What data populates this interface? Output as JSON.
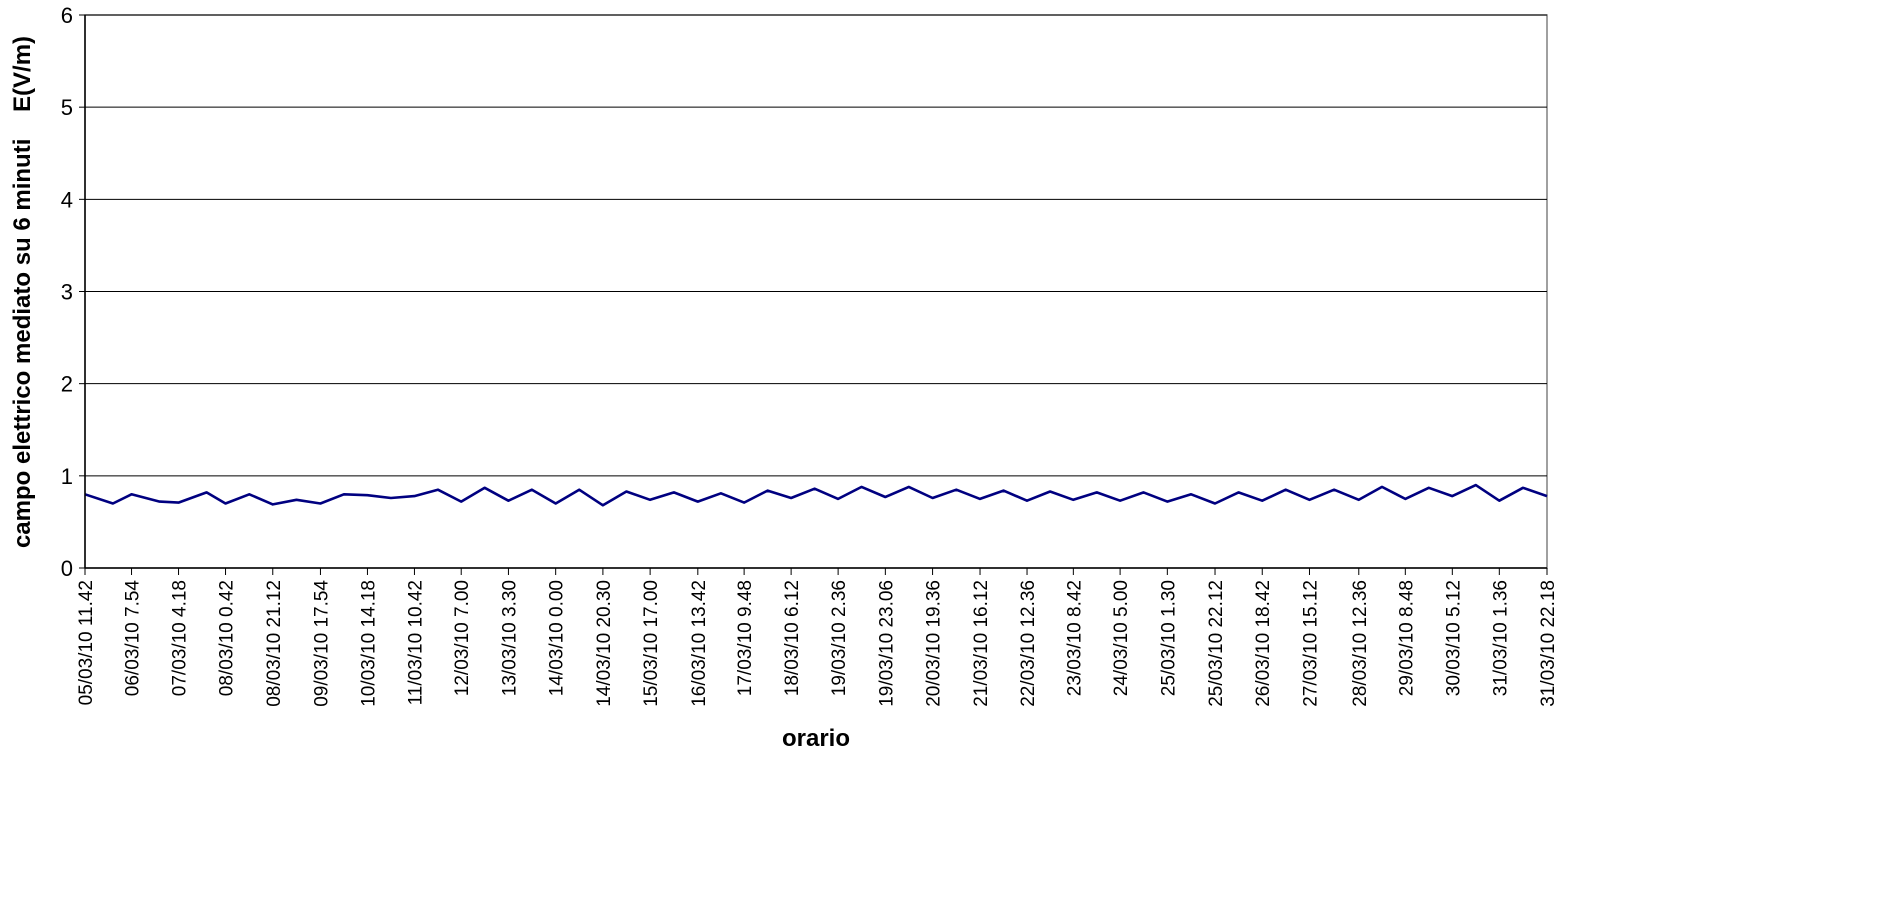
{
  "chart_data": {
    "type": "line",
    "xlabel": "orario",
    "ylabel": "campo elettrico mediato su 6 minuti    E(V/m)",
    "ylim": [
      0,
      6
    ],
    "yticks": [
      "0",
      "1",
      "2",
      "3",
      "4",
      "5",
      "6"
    ],
    "grid": "horizontal",
    "legend": "none",
    "x_start": "05/03/10 11.42",
    "x_end": "31/03/10 22.18",
    "x_ticks": [
      "05/03/10 11.42",
      "06/03/10 7.54",
      "07/03/10 4.18",
      "08/03/10 0.42",
      "08/03/10 21.12",
      "09/03/10 17.54",
      "10/03/10 14.18",
      "11/03/10 10.42",
      "12/03/10 7.00",
      "13/03/10 3.30",
      "14/03/10 0.00",
      "14/03/10 20.30",
      "15/03/10 17.00",
      "16/03/10 13.42",
      "17/03/10 9.48",
      "18/03/10 6.12",
      "19/03/10 2.36",
      "19/03/10 23.06",
      "20/03/10 19.36",
      "21/03/10 16.12",
      "22/03/10 12.36",
      "23/03/10 8.42",
      "24/03/10 5.00",
      "25/03/10 1.30",
      "25/03/10 22.12",
      "26/03/10 18.42",
      "27/03/10 15.12",
      "28/03/10 12.36",
      "29/03/10 8.48",
      "30/03/10 5.12",
      "31/03/10 1.36",
      "31/03/10 22.18"
    ],
    "series": [
      {
        "color": "#000080",
        "x": [
          "05/03/10 11.42",
          "05/03/10 23.48",
          "06/03/10 7.54",
          "06/03/10 20.06",
          "07/03/10 4.18",
          "07/03/10 16.30",
          "08/03/10 0.42",
          "08/03/10 11.00",
          "08/03/10 21.12",
          "09/03/10 7.30",
          "09/03/10 17.54",
          "10/03/10 4.06",
          "10/03/10 14.18",
          "11/03/10 0.30",
          "11/03/10 10.42",
          "11/03/10 20.54",
          "12/03/10 7.00",
          "12/03/10 17.12",
          "13/03/10 3.30",
          "13/03/10 13.42",
          "14/03/10 0.00",
          "14/03/10 10.12",
          "14/03/10 20.30",
          "15/03/10 6.42",
          "15/03/10 17.00",
          "16/03/10 3.18",
          "16/03/10 13.42",
          "16/03/10 23.42",
          "17/03/10 9.48",
          "17/03/10 20.00",
          "18/03/10 6.12",
          "18/03/10 16.24",
          "19/03/10 2.36",
          "19/03/10 12.48",
          "19/03/10 23.06",
          "20/03/10 9.18",
          "20/03/10 19.36",
          "21/03/10 5.54",
          "21/03/10 16.12",
          "22/03/10 2.24",
          "22/03/10 12.36",
          "22/03/10 22.36",
          "23/03/10 8.42",
          "23/03/10 18.54",
          "24/03/10 5.00",
          "24/03/10 15.12",
          "25/03/10 1.30",
          "25/03/10 11.48",
          "25/03/10 22.12",
          "26/03/10 8.24",
          "26/03/10 18.42",
          "27/03/10 4.54",
          "27/03/10 15.12",
          "28/03/10 1.54",
          "28/03/10 12.36",
          "28/03/10 22.42",
          "29/03/10 8.48",
          "29/03/10 19.00",
          "30/03/10 5.12",
          "30/03/10 15.24",
          "31/03/10 1.36",
          "31/03/10 11.54",
          "31/03/10 22.18"
        ],
        "y": [
          0.8,
          0.7,
          0.8,
          0.72,
          0.71,
          0.82,
          0.7,
          0.8,
          0.69,
          0.74,
          0.7,
          0.8,
          0.79,
          0.76,
          0.78,
          0.85,
          0.72,
          0.87,
          0.73,
          0.85,
          0.7,
          0.85,
          0.68,
          0.83,
          0.74,
          0.82,
          0.72,
          0.81,
          0.71,
          0.84,
          0.76,
          0.86,
          0.75,
          0.88,
          0.77,
          0.88,
          0.76,
          0.85,
          0.75,
          0.84,
          0.73,
          0.83,
          0.74,
          0.82,
          0.73,
          0.82,
          0.72,
          0.8,
          0.7,
          0.82,
          0.73,
          0.85,
          0.74,
          0.85,
          0.74,
          0.88,
          0.75,
          0.87,
          0.78,
          0.9,
          0.73,
          0.87,
          0.78
        ]
      }
    ]
  }
}
